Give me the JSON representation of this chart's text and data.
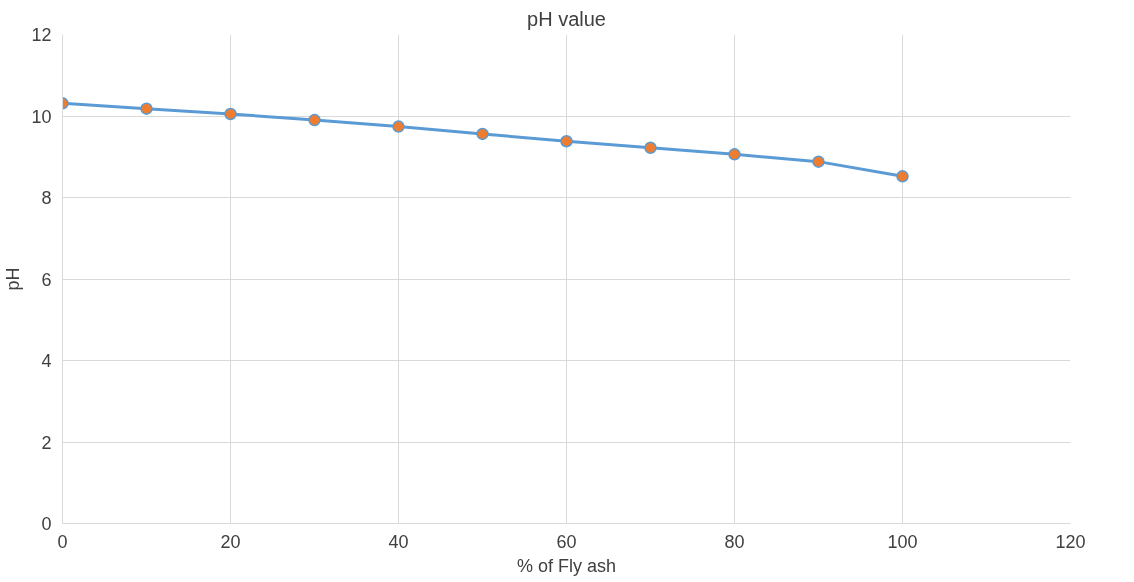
{
  "chart_data": {
    "type": "line",
    "title": "pH value",
    "xlabel": "% of Fly ash",
    "ylabel": "pH",
    "x": [
      0,
      10,
      20,
      30,
      40,
      50,
      60,
      70,
      80,
      90,
      100
    ],
    "series": [
      {
        "color": "#5b9bd5",
        "values": [
          10.31,
          10.18,
          10.05,
          9.9,
          9.74,
          9.56,
          9.38,
          9.22,
          9.06,
          8.88,
          8.52
        ]
      }
    ],
    "marker": "circle",
    "xlim": [
      0,
      120
    ],
    "xticks": [
      0,
      20,
      40,
      60,
      80,
      100,
      120
    ],
    "ylim": [
      0,
      12
    ],
    "yticks": [
      0,
      2,
      4,
      6,
      8,
      10,
      12
    ],
    "grid": true
  }
}
